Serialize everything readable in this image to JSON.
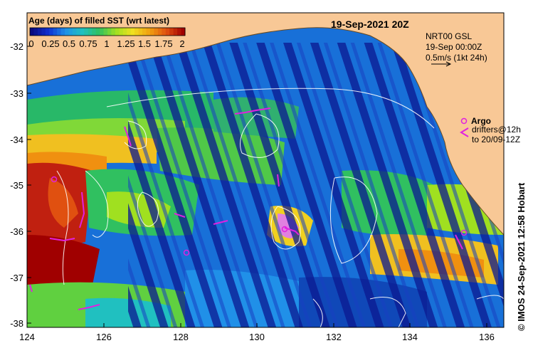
{
  "map": {
    "date_label": "19-Sep-2021 20Z",
    "legend_title": "Age (days) of filled SST (wrt latest)",
    "legend_ticks": [
      "0",
      "0.25",
      "0.5",
      "0.75",
      "1",
      "1.25",
      "1.5",
      "1.75",
      "2"
    ],
    "legend_colors": [
      "#0a0a80",
      "#1030d0",
      "#2090e8",
      "#20c0c0",
      "#30c060",
      "#a0e020",
      "#f0e020",
      "#f0a010",
      "#e05010",
      "#a00000"
    ],
    "velocity": {
      "line1": "NRT00 GSL",
      "line2": "19-Sep 00:00Z",
      "line3": "0.5m/s (1kt 24h)"
    },
    "argo": {
      "label": "Argo",
      "drifters_line1": "drifters@12h",
      "drifters_line2": "to 20/09-12Z",
      "color": "#e020e0"
    },
    "credit": "© IMOS 24-Sep-2021 12:58 Hobart",
    "x_ticks": [
      "124",
      "126",
      "128",
      "130",
      "132",
      "134",
      "136"
    ],
    "y_ticks": [
      "-32",
      "-33",
      "-34",
      "-35",
      "-36",
      "-37",
      "-38"
    ],
    "land_color": "#f8c896"
  }
}
